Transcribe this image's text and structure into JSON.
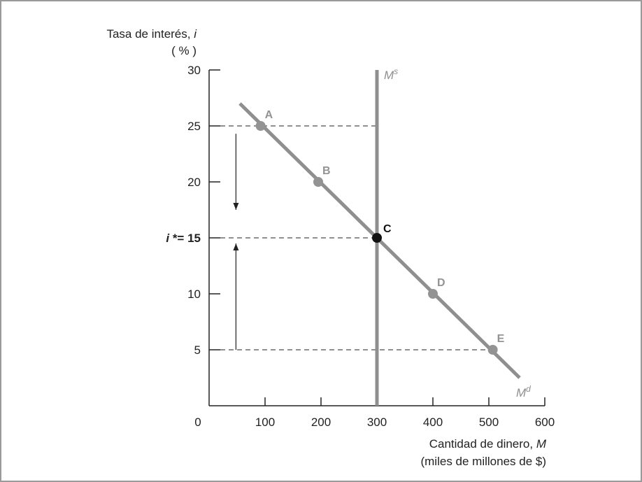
{
  "chart_data": {
    "type": "line",
    "ylabel_line1": "Tasa de interés, ",
    "ylabel_var": "i",
    "ylabel_line2": "( % )",
    "xlabel_line1": "Cantidad de dinero, ",
    "xlabel_var": "M",
    "xlabel_line2": "(miles de millones de $)",
    "xlim": [
      0,
      600
    ],
    "ylim": [
      0,
      30
    ],
    "x_ticks": [
      0,
      100,
      200,
      300,
      400,
      500,
      600
    ],
    "y_ticks": [
      5,
      10,
      20,
      25,
      30
    ],
    "equilibrium_label_var": "i",
    "equilibrium_label_rest": " *= 15",
    "equilibrium_rate": 15,
    "money_supply": {
      "name_base": "M",
      "name_sup": "s",
      "x": 300
    },
    "money_demand": {
      "name_base": "M",
      "name_sup": "d",
      "x": [
        55,
        555
      ],
      "y": [
        27,
        2.5
      ]
    },
    "points": [
      {
        "label": "A",
        "x": 92,
        "y": 25
      },
      {
        "label": "B",
        "x": 195,
        "y": 20
      },
      {
        "label": "C",
        "x": 300,
        "y": 15
      },
      {
        "label": "D",
        "x": 400,
        "y": 10
      },
      {
        "label": "E",
        "x": 507,
        "y": 5
      }
    ],
    "dashed_levels": [
      {
        "y": 25,
        "x_to": 300
      },
      {
        "y": 15,
        "x_to": 300
      },
      {
        "y": 5,
        "x_to": 507
      }
    ],
    "arrows": [
      {
        "direction": "down",
        "x": 48,
        "y_from": 24.3,
        "y_to": 17.5
      },
      {
        "direction": "up",
        "x": 48,
        "y_from": 5,
        "y_to": 14.5
      }
    ],
    "colors": {
      "curve": "#8f8f8f",
      "point": "#939393",
      "equilibrium_point": "#111111",
      "axis": "#222222",
      "frame": "#9a9a9a",
      "dashes": "#222222"
    }
  }
}
